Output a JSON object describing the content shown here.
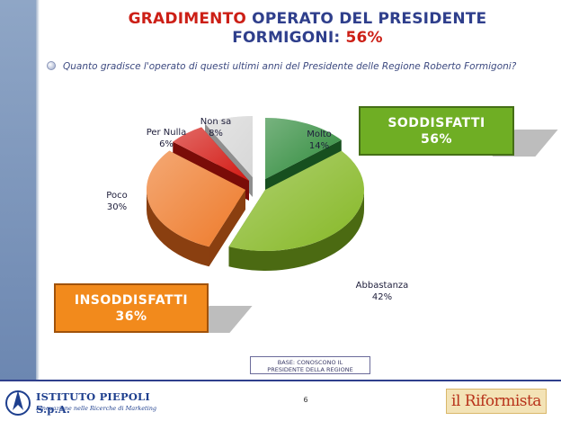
{
  "header": {
    "title_line1_highlight": "GRADIMENTO",
    "title_line1_rest": " OPERATO DEL PRESIDENTE",
    "title_line2_text": "FORMIGONI: ",
    "title_line2_value": "56%"
  },
  "question": "Quanto gradisce l'operato di questi ultimi anni del Presidente delle Regione Roberto Formigoni?",
  "summary": {
    "satisfied_label": "SODDISFATTI",
    "satisfied_value": "56%",
    "dissatisfied_label": "INSODDISFATTI",
    "dissatisfied_value": "36%"
  },
  "chart_data": {
    "type": "pie",
    "title": "",
    "categories": [
      "Molto",
      "Abbastanza",
      "Poco",
      "Per Nulla",
      "Non sa"
    ],
    "values": [
      14,
      42,
      30,
      6,
      8
    ],
    "value_labels": [
      "14%",
      "42%",
      "30%",
      "6%",
      "8%"
    ],
    "colors": [
      "#2e8a3a",
      "#86b826",
      "#ee7a2a",
      "#d31a14",
      "#d7d7d7"
    ],
    "dark_colors": [
      "#174f1f",
      "#4b6a12",
      "#8a3f10",
      "#7a0c08",
      "#8f8f8f"
    ],
    "style": "3d",
    "legend": "none"
  },
  "base_note": {
    "line1": "BASE: CONOSCONO IL",
    "line2": "PRESIDENTE DELLA REGIONE"
  },
  "footer": {
    "page_number": "6",
    "piepoli_name": "ISTITUTO PIEPOLI S.p.A.",
    "piepoli_tagline": "Innovazione nelle Ricerche di Marketing",
    "riformista_logo": "il Riformista"
  }
}
